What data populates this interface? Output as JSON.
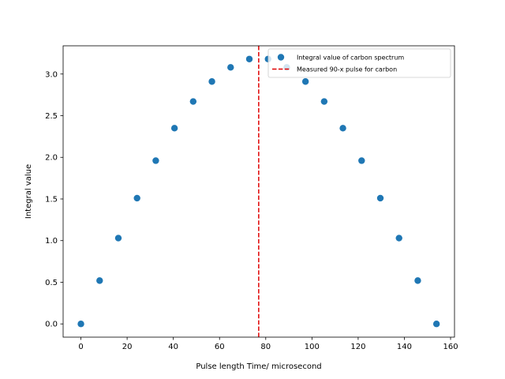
{
  "chart_data": {
    "type": "scatter",
    "title": "",
    "xlabel": "Pulse length Time/ microsecond",
    "ylabel": "Integral value",
    "xlim": [
      -7.7,
      161.7
    ],
    "ylim": [
      -0.159,
      3.339
    ],
    "xticks": [
      0,
      20,
      40,
      60,
      80,
      100,
      120,
      140,
      160
    ],
    "yticks": [
      0.0,
      0.5,
      1.0,
      1.5,
      2.0,
      2.5,
      3.0
    ],
    "ytick_labels": [
      "0.0",
      "0.5",
      "1.0",
      "1.5",
      "2.0",
      "2.5",
      "3.0"
    ],
    "grid": false,
    "legend_position": "top-right",
    "series": [
      {
        "name": "Integral value of carbon spectrum",
        "color": "#1f77b4",
        "x": [
          0,
          8.1,
          16.2,
          24.3,
          32.4,
          40.5,
          48.6,
          56.7,
          64.8,
          72.9,
          81.0,
          89.1,
          97.2,
          105.3,
          113.4,
          121.5,
          129.6,
          137.7,
          145.8,
          153.9
        ],
        "y": [
          0.0,
          0.52,
          1.03,
          1.51,
          1.96,
          2.35,
          2.67,
          2.91,
          3.08,
          3.18,
          3.18,
          3.08,
          2.91,
          2.67,
          2.35,
          1.96,
          1.51,
          1.03,
          0.52,
          0.0
        ]
      }
    ],
    "vline": {
      "name": "Measured 90-x pulse for carbon",
      "x": 76.95,
      "color": "#e00000"
    }
  }
}
